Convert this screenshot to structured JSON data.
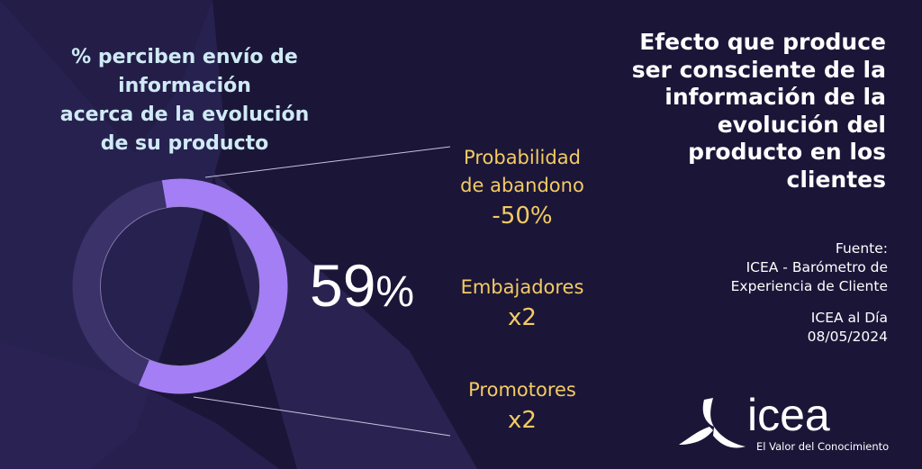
{
  "headline": [
    "Efecto que produce",
    "ser consciente de la",
    "información de la",
    "evolución del",
    "producto en los",
    "clientes"
  ],
  "source": {
    "lines": [
      "Fuente:",
      "ICEA - Barómetro de",
      "Experiencia de Cliente"
    ],
    "publication": [
      "ICEA al Día",
      "08/05/2024"
    ]
  },
  "logo": {
    "word": "icea",
    "tagline": "El Valor del Conocimiento"
  },
  "colors": {
    "background": "#1b1638",
    "ring": "#a47ef5",
    "ring_track": "#3a3268",
    "accent_text": "#f4cb62",
    "title_text": "#cfeaf4"
  },
  "chart_data": {
    "type": "pie",
    "variant": "donut",
    "title": [
      "% perciben envío de",
      "información",
      "acerca de la evolución",
      "de su producto"
    ],
    "values": [
      59,
      41
    ],
    "center_value": "59",
    "center_unit": "%",
    "annotations": [
      {
        "label": [
          "Probabilidad",
          "de abandono"
        ],
        "value": "-50%"
      },
      {
        "label": [
          "Embajadores"
        ],
        "value": "x2"
      },
      {
        "label": [
          "Promotores"
        ],
        "value": "x2"
      }
    ]
  }
}
